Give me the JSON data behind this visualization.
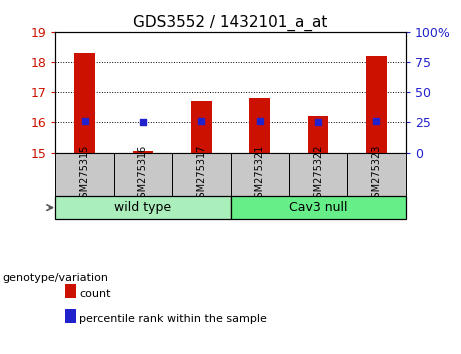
{
  "title": "GDS3552 / 1432101_a_at",
  "samples": [
    "GSM275315",
    "GSM275316",
    "GSM275317",
    "GSM275321",
    "GSM275322",
    "GSM275323"
  ],
  "group_labels": [
    "wild type",
    "Cav3 null"
  ],
  "count_values": [
    18.3,
    15.05,
    16.7,
    16.8,
    16.2,
    18.2
  ],
  "percentile_values": [
    26,
    25,
    26,
    26,
    25,
    26
  ],
  "ylim_left": [
    15,
    19
  ],
  "ylim_right": [
    0,
    100
  ],
  "yticks_left": [
    15,
    16,
    17,
    18,
    19
  ],
  "yticks_right": [
    0,
    25,
    50,
    75,
    100
  ],
  "bar_color": "#CC1100",
  "dot_color": "#2222CC",
  "bar_bottom": 15,
  "dot_size": 22,
  "legend_count_label": "count",
  "legend_pct_label": "percentile rank within the sample",
  "genotype_label": "genotype/variation",
  "sample_bg_color": "#C8C8C8",
  "group_box_color_wt": "#AAEEBB",
  "group_box_color_cav": "#66EE88",
  "title_fontsize": 11,
  "tick_fontsize": 9,
  "sample_fontsize": 7,
  "group_fontsize": 9,
  "legend_fontsize": 8,
  "genotype_fontsize": 8
}
